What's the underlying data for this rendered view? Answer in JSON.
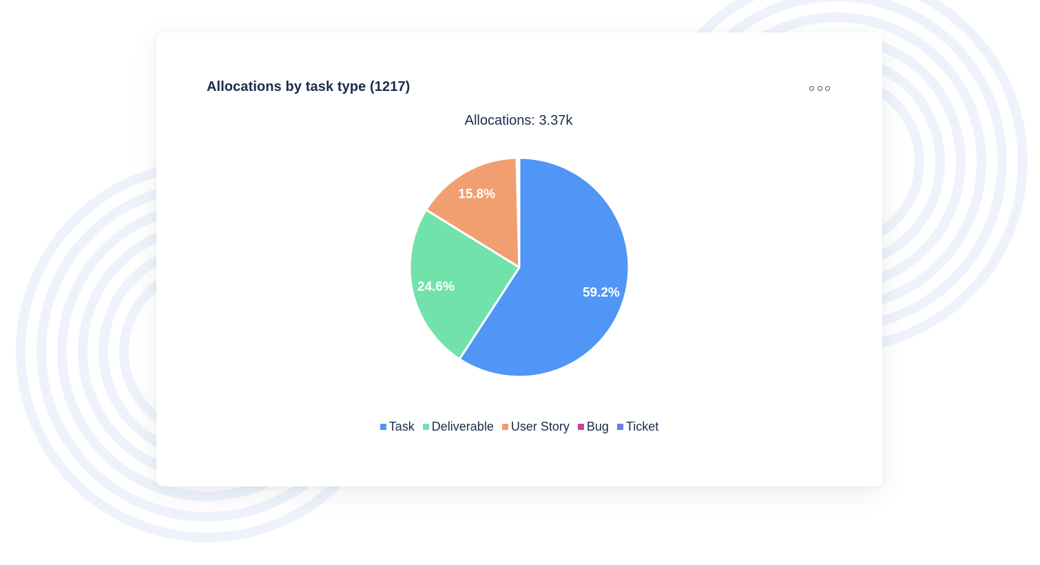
{
  "card": {
    "title": "Allocations by task type (1217)",
    "more_icon": "more-horizontal-icon"
  },
  "chart_data": {
    "type": "pie",
    "title": "Allocations: 3.37k",
    "slices": [
      {
        "label": "Task",
        "percent": 59.2,
        "value_label": "59.2%",
        "color": "#4f96f6"
      },
      {
        "label": "Deliverable",
        "percent": 24.6,
        "value_label": "24.6%",
        "color": "#72e2ad"
      },
      {
        "label": "User Story",
        "percent": 15.8,
        "value_label": "15.8%",
        "color": "#f19f71"
      },
      {
        "label": "Bug",
        "percent": 0.2,
        "value_label": "",
        "color": "#cf3f9a"
      },
      {
        "label": "Ticket",
        "percent": 0.2,
        "value_label": "",
        "color": "#6b7fe3"
      }
    ],
    "legend_position": "bottom"
  }
}
